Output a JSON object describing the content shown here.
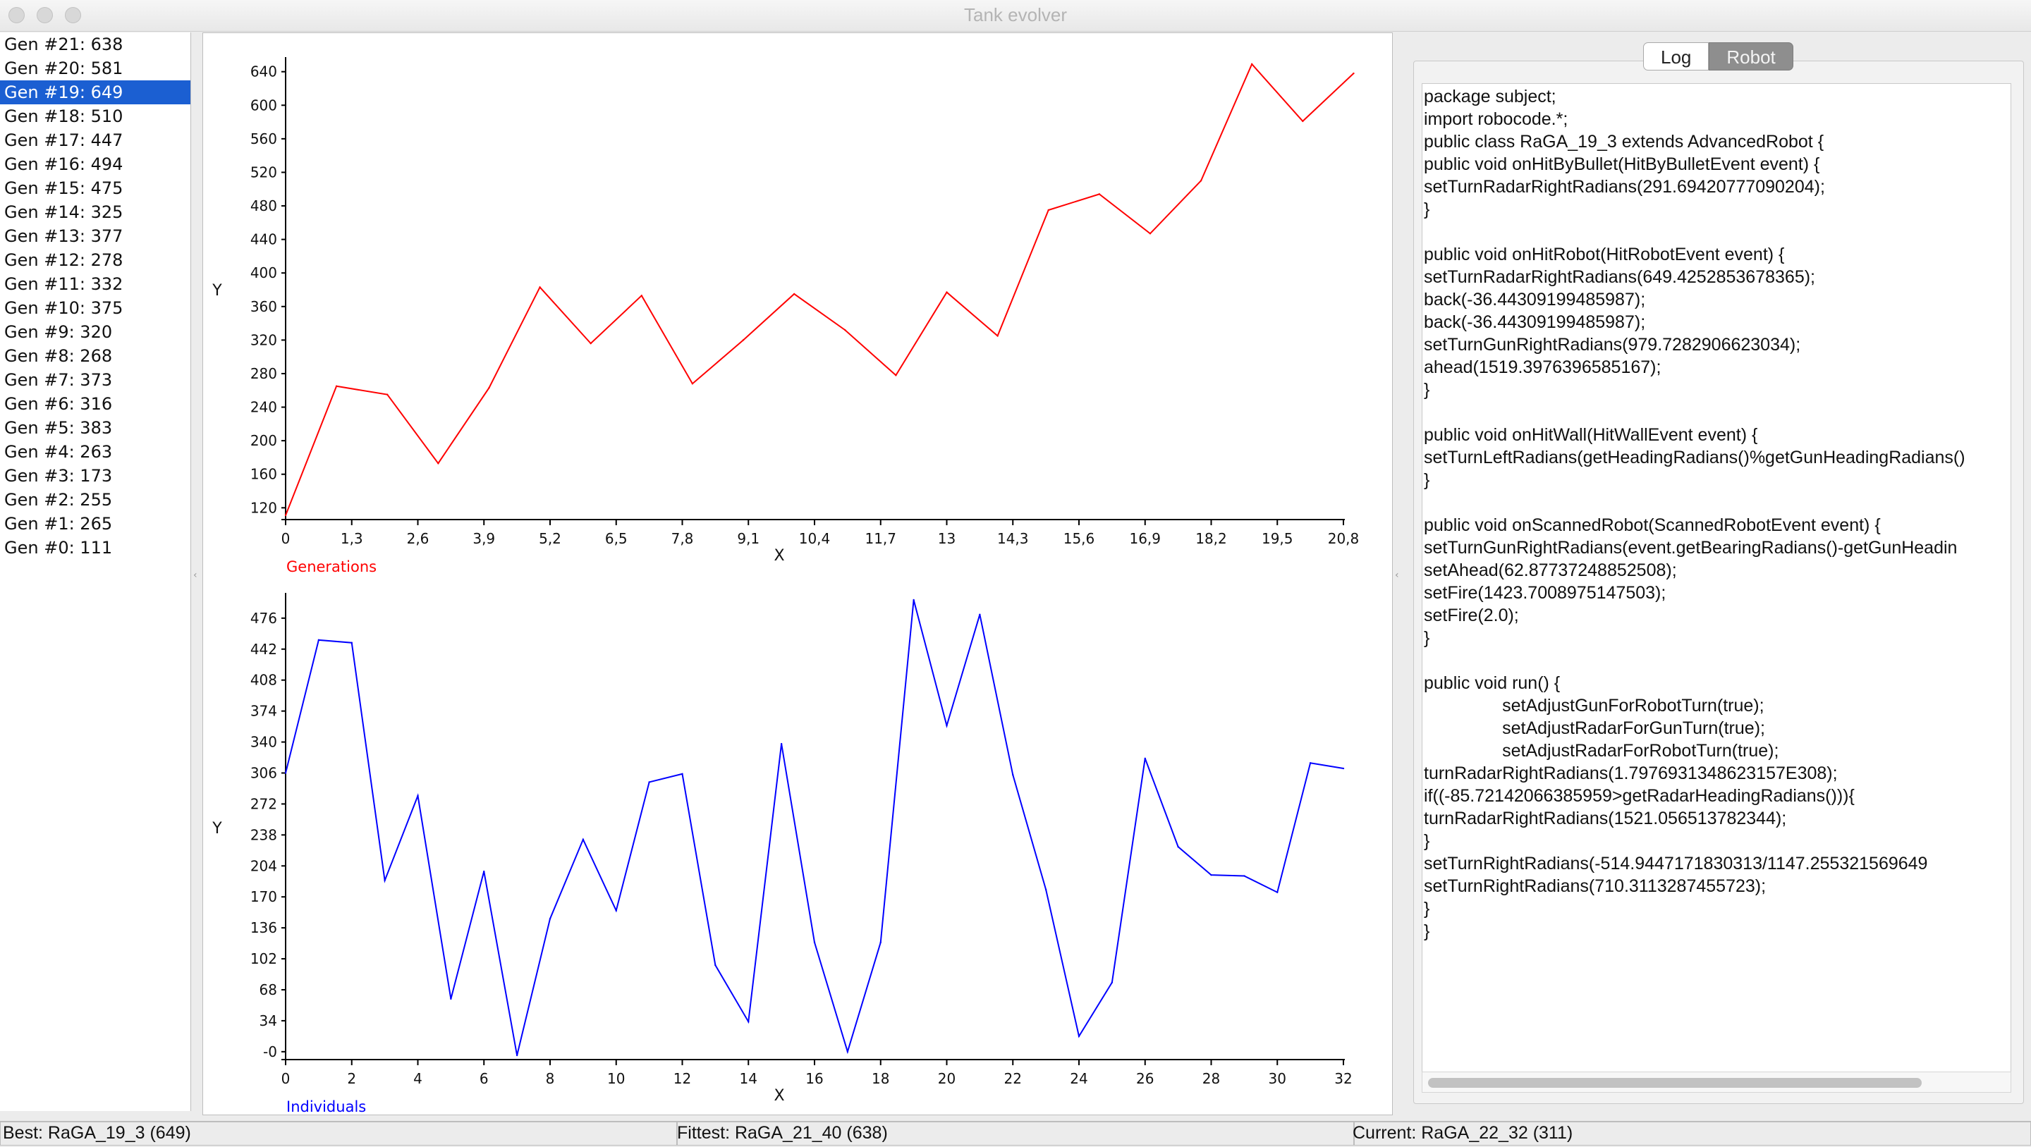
{
  "window": {
    "title": "Tank evolver"
  },
  "generations": {
    "selected_index": 2,
    "items": [
      "Gen #21: 638",
      "Gen #20: 581",
      "Gen #19: 649",
      "Gen #18: 510",
      "Gen #17: 447",
      "Gen #16: 494",
      "Gen #15: 475",
      "Gen #14: 325",
      "Gen #13: 377",
      "Gen #12: 278",
      "Gen #11: 332",
      "Gen #10: 375",
      "Gen #9: 320",
      "Gen #8: 268",
      "Gen #7: 373",
      "Gen #6: 316",
      "Gen #5: 383",
      "Gen #4: 263",
      "Gen #3: 173",
      "Gen #2: 255",
      "Gen #1: 265",
      "Gen #0: 111"
    ]
  },
  "tabs": {
    "log": "Log",
    "robot": "Robot",
    "active": "robot"
  },
  "code": {
    "lines": [
      "package subject;",
      "import robocode.*;",
      "public class RaGA_19_3 extends AdvancedRobot {",
      "public void onHitByBullet(HitByBulletEvent event) {",
      "setTurnRadarRightRadians(291.69420777090204);",
      "}",
      "",
      "public void onHitRobot(HitRobotEvent event) {",
      "setTurnRadarRightRadians(649.4252853678365);",
      "back(-36.44309199485987);",
      "back(-36.44309199485987);",
      "setTurnGunRightRadians(979.7282906623034);",
      "ahead(1519.3976396585167);",
      "}",
      "",
      "public void onHitWall(HitWallEvent event) {",
      "setTurnLeftRadians(getHeadingRadians()%getGunHeadingRadians()",
      "}",
      "",
      "public void onScannedRobot(ScannedRobotEvent event) {",
      "setTurnGunRightRadians(event.getBearingRadians()-getGunHeadin",
      "setAhead(62.87737248852508);",
      "setFire(1423.7008975147503);",
      "setFire(2.0);",
      "}",
      "",
      "public void run() {",
      "                setAdjustGunForRobotTurn(true);",
      "                setAdjustRadarForGunTurn(true);",
      "                setAdjustRadarForRobotTurn(true);",
      "turnRadarRightRadians(1.7976931348623157E308);",
      "if((-85.72142066385959>getRadarHeadingRadians())){",
      "turnRadarRightRadians(1521.056513782344);",
      "}",
      "setTurnRightRadians(-514.9447171830313/1147.255321569649",
      "setTurnRightRadians(710.3113287455723);",
      "}",
      "}"
    ]
  },
  "status": {
    "best": "Best: RaGA_19_3 (649)",
    "fittest": "Fittest: RaGA_21_40 (638)",
    "current": "Current: RaGA_22_32 (311)"
  },
  "chart_data": [
    {
      "type": "line",
      "legend": "Generations",
      "xlabel": "X",
      "ylabel": "Y",
      "color": "#ff0000",
      "xlim": [
        0,
        20.8
      ],
      "ylim": [
        111,
        649
      ],
      "x_ticks": [
        "0",
        "1,3",
        "2,6",
        "3,9",
        "5,2",
        "6,5",
        "7,8",
        "9,1",
        "10,4",
        "11,7",
        "13",
        "14,3",
        "15,6",
        "16,9",
        "18,2",
        "19,5",
        "20,8"
      ],
      "y_ticks": [
        "120",
        "160",
        "200",
        "240",
        "280",
        "320",
        "360",
        "400",
        "440",
        "480",
        "520",
        "560",
        "600",
        "640"
      ],
      "x": [
        0,
        1,
        2,
        3,
        4,
        5,
        6,
        7,
        8,
        9,
        10,
        11,
        12,
        13,
        14,
        15,
        16,
        17,
        18,
        19,
        20,
        21
      ],
      "y": [
        111,
        265,
        255,
        173,
        263,
        383,
        316,
        373,
        268,
        320,
        375,
        332,
        278,
        377,
        325,
        475,
        494,
        447,
        510,
        649,
        581,
        638
      ]
    },
    {
      "type": "line",
      "legend": "Individuals",
      "xlabel": "X",
      "ylabel": "Y",
      "color": "#0000ff",
      "xlim": [
        0,
        32
      ],
      "ylim": [
        -4,
        496
      ],
      "x_ticks": [
        "0",
        "2",
        "4",
        "6",
        "8",
        "10",
        "12",
        "14",
        "16",
        "18",
        "20",
        "22",
        "24",
        "26",
        "28",
        "30",
        "32"
      ],
      "y_ticks": [
        "-0",
        "34",
        "68",
        "102",
        "136",
        "170",
        "204",
        "238",
        "272",
        "306",
        "340",
        "374",
        "408",
        "442",
        "476"
      ],
      "x": [
        0,
        1,
        2,
        3,
        4,
        5,
        6,
        7,
        8,
        9,
        10,
        11,
        12,
        13,
        14,
        15,
        16,
        17,
        18,
        19,
        20,
        21,
        22,
        23,
        24,
        25,
        26,
        27,
        28,
        29,
        30,
        31,
        32
      ],
      "y": [
        306,
        452,
        449,
        188,
        281,
        58,
        198,
        -4,
        146,
        233,
        155,
        296,
        305,
        95,
        33,
        338,
        120,
        0,
        120,
        496,
        358,
        480,
        304,
        178,
        17,
        76,
        322,
        225,
        194,
        193,
        175,
        317,
        311
      ]
    }
  ]
}
